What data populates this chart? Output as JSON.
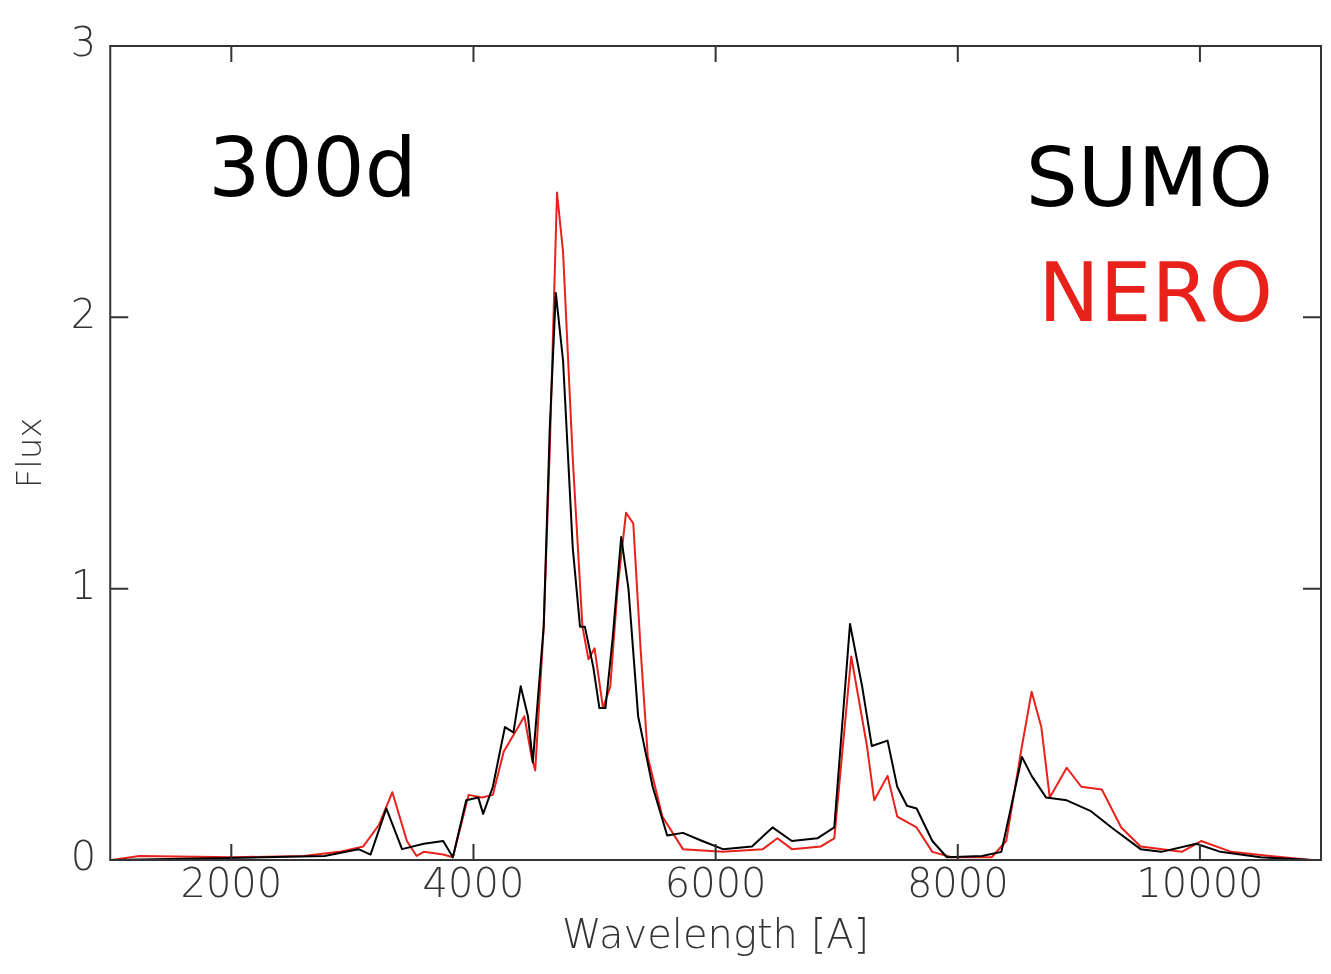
{
  "chart_data": {
    "type": "line",
    "xlabel": "Wavelength [A]",
    "ylabel": "Flux",
    "annotations": [
      {
        "text": "300d"
      }
    ],
    "xlim": [
      1000,
      11000
    ],
    "xticks": [
      2000,
      4000,
      6000,
      8000,
      10000
    ],
    "ylim": [
      0,
      3
    ],
    "yticks": [
      0,
      1,
      2,
      3
    ],
    "grid": false,
    "legend": "top right",
    "marker": "none",
    "line_style": "solid",
    "series": [
      {
        "name": "SUMO",
        "color": "#000000",
        "x": [
          1012,
          2270,
          2770,
          3050,
          3150,
          3280,
          3410,
          3590,
          3750,
          3830,
          3940,
          4040,
          4080,
          4160,
          4260,
          4330,
          4390,
          4450,
          4490,
          4580,
          4630,
          4680,
          4740,
          4820,
          4880,
          4920,
          4990,
          5040,
          5090,
          5150,
          5220,
          5280,
          5360,
          5480,
          5600,
          5730,
          5890,
          6060,
          6300,
          6470,
          6630,
          6840,
          6980,
          7110,
          7210,
          7290,
          7420,
          7500,
          7580,
          7660,
          7790,
          7910,
          8200,
          8360,
          8530,
          8610,
          8730,
          8900,
          9100,
          9270,
          9510,
          9680,
          9970,
          10170,
          10500,
          10920
        ],
        "values": [
          0,
          0.01,
          0.015,
          0.04,
          0.02,
          0.19,
          0.04,
          0.06,
          0.07,
          0.01,
          0.22,
          0.23,
          0.17,
          0.27,
          0.49,
          0.47,
          0.64,
          0.53,
          0.36,
          0.86,
          1.59,
          2.09,
          1.84,
          1.15,
          0.86,
          0.86,
          0.71,
          0.56,
          0.56,
          0.82,
          1.19,
          1.0,
          0.53,
          0.27,
          0.09,
          0.1,
          0.07,
          0.04,
          0.05,
          0.12,
          0.07,
          0.08,
          0.12,
          0.87,
          0.64,
          0.42,
          0.44,
          0.27,
          0.2,
          0.19,
          0.07,
          0.01,
          0.015,
          0.03,
          0.38,
          0.31,
          0.23,
          0.22,
          0.18,
          0.12,
          0.04,
          0.03,
          0.06,
          0.03,
          0.01,
          0
        ]
      },
      {
        "name": "NERO",
        "color": "#e8211b",
        "x": [
          1012,
          1240,
          2020,
          2600,
          2890,
          3090,
          3220,
          3330,
          3450,
          3530,
          3590,
          3750,
          3830,
          3960,
          4070,
          4160,
          4250,
          4370,
          4420,
          4480,
          4510,
          4580,
          4630,
          4690,
          4740,
          4820,
          4900,
          4950,
          5000,
          5070,
          5130,
          5190,
          5260,
          5320,
          5380,
          5440,
          5560,
          5730,
          6060,
          6390,
          6510,
          6630,
          6870,
          6980,
          7120,
          7250,
          7310,
          7420,
          7500,
          7660,
          7790,
          7950,
          8280,
          8400,
          8530,
          8610,
          8690,
          8760,
          8900,
          9020,
          9190,
          9350,
          9510,
          9850,
          10010,
          10260,
          10580,
          10920
        ],
        "values": [
          0,
          0.015,
          0.01,
          0.015,
          0.03,
          0.05,
          0.13,
          0.25,
          0.07,
          0.015,
          0.03,
          0.02,
          0.01,
          0.24,
          0.23,
          0.24,
          0.4,
          0.49,
          0.53,
          0.38,
          0.33,
          0.86,
          1.51,
          2.46,
          2.24,
          1.48,
          0.86,
          0.74,
          0.78,
          0.56,
          0.64,
          1.0,
          1.28,
          1.24,
          0.78,
          0.38,
          0.16,
          0.04,
          0.03,
          0.04,
          0.08,
          0.04,
          0.05,
          0.08,
          0.75,
          0.42,
          0.22,
          0.31,
          0.16,
          0.12,
          0.03,
          0.01,
          0.01,
          0.07,
          0.42,
          0.62,
          0.49,
          0.23,
          0.34,
          0.27,
          0.26,
          0.12,
          0.05,
          0.03,
          0.07,
          0.03,
          0.015,
          0
        ]
      }
    ]
  }
}
